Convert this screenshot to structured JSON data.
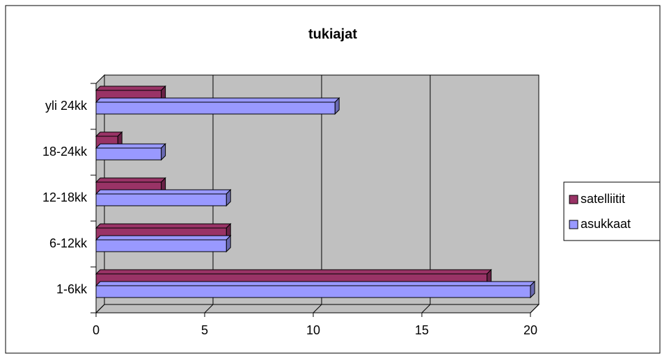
{
  "chart_data": {
    "type": "bar",
    "orientation": "horizontal",
    "title": "tukiajat",
    "categories": [
      "1-6kk",
      "6-12kk",
      "12-18kk",
      "18-24kk",
      "yli 24kk"
    ],
    "series": [
      {
        "name": "satelliitit",
        "color": "#993366",
        "values": [
          18,
          6,
          3,
          1,
          3
        ]
      },
      {
        "name": "asukkaat",
        "color": "#9999ff",
        "values": [
          20,
          6,
          6,
          3,
          11
        ]
      }
    ],
    "xlim": [
      0,
      20
    ],
    "xticks": [
      0,
      5,
      10,
      15,
      20
    ],
    "grid": true,
    "legend": "right"
  }
}
